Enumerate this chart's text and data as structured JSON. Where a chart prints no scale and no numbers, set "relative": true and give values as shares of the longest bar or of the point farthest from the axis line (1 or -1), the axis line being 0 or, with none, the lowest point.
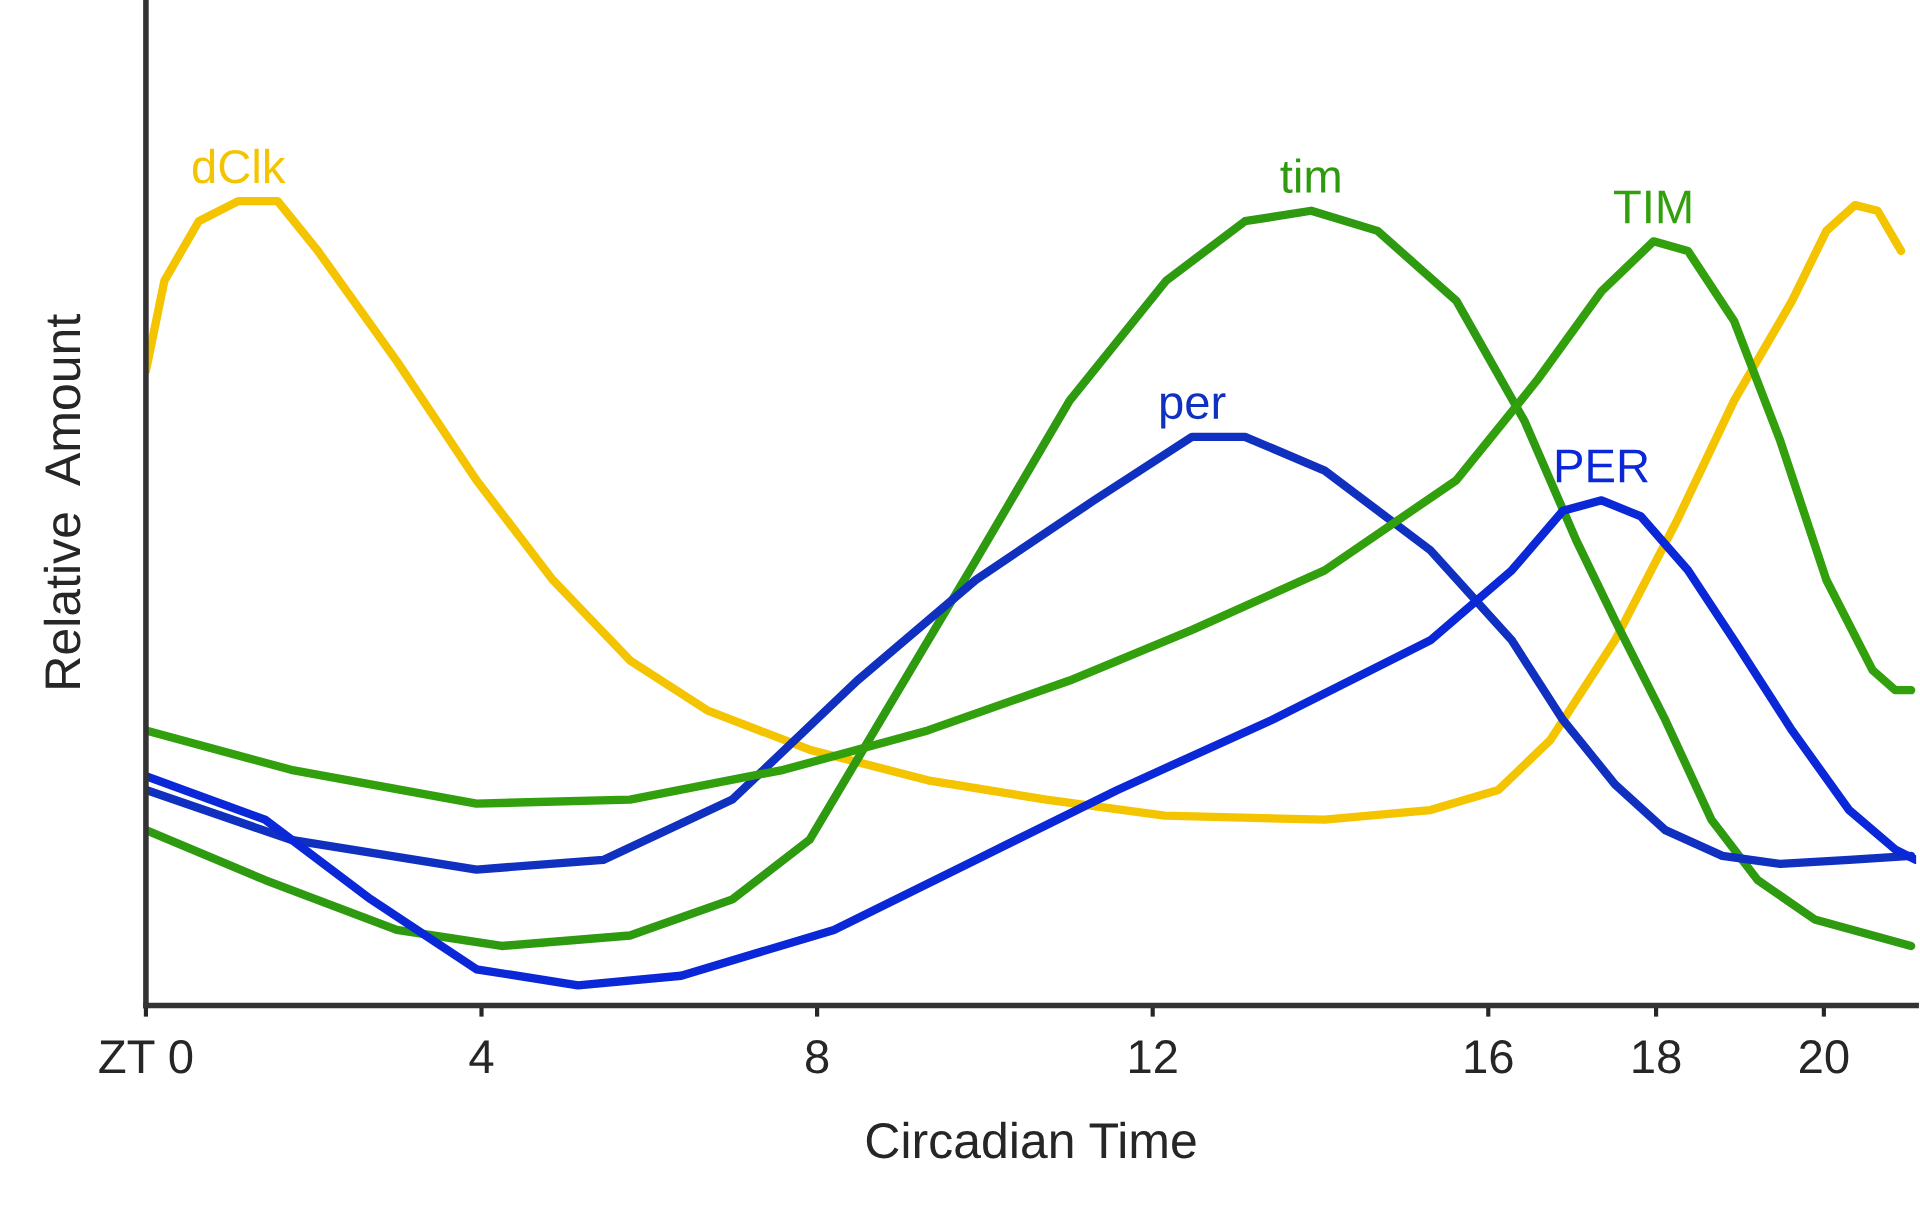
{
  "chart_data": {
    "type": "line",
    "relative": true,
    "xlabel": "Circadian Time",
    "ylabel": "Relative  Amount",
    "xlim": [
      0,
      21.1
    ],
    "xticks": [
      {
        "value": 0,
        "label": "ZT 0"
      },
      4,
      8,
      12,
      16,
      18,
      20
    ],
    "grid": false,
    "legend": false,
    "marker": "none",
    "line_style": "solid",
    "series": [
      {
        "name": "dClk",
        "color": "#f5c400",
        "x": [
          0,
          0.22,
          0.63,
          1.1,
          1.57,
          2.05,
          2.99,
          3.94,
          4.85,
          5.77,
          6.69,
          7.91,
          9.32,
          10.73,
          12.14,
          14.05,
          15.31,
          16.12,
          16.74,
          17.51,
          18.25,
          18.93,
          19.62,
          20.03,
          20.37,
          20.64,
          20.92
        ],
        "values": [
          0.789,
          0.901,
          0.975,
          1.0,
          1.0,
          0.938,
          0.801,
          0.653,
          0.529,
          0.429,
          0.367,
          0.318,
          0.28,
          0.256,
          0.236,
          0.231,
          0.243,
          0.268,
          0.33,
          0.454,
          0.603,
          0.752,
          0.876,
          0.963,
          0.995,
          0.988,
          0.938
        ]
      },
      {
        "name": "tim",
        "color": "#2e9a10",
        "x": [
          0,
          1.42,
          2.99,
          4.24,
          5.77,
          6.99,
          7.91,
          8.76,
          9.89,
          11.01,
          12.16,
          13.1,
          13.89,
          14.68,
          15.62,
          16.43,
          17.05,
          17.51,
          18.11,
          18.66,
          19.21,
          19.89,
          21.04
        ],
        "values": [
          0.218,
          0.156,
          0.094,
          0.074,
          0.087,
          0.132,
          0.206,
          0.355,
          0.553,
          0.752,
          0.901,
          0.975,
          0.988,
          0.963,
          0.876,
          0.727,
          0.578,
          0.479,
          0.355,
          0.231,
          0.156,
          0.107,
          0.074
        ]
      },
      {
        "name": "per",
        "color": "#1030c0",
        "x": [
          0,
          1.73,
          3.94,
          5.45,
          6.99,
          8.48,
          9.89,
          11.3,
          12.47,
          13.1,
          14.05,
          15.31,
          16.28,
          16.89,
          17.51,
          18.11,
          18.79,
          19.48,
          20.3,
          21.04
        ],
        "values": [
          0.268,
          0.206,
          0.169,
          0.181,
          0.256,
          0.404,
          0.529,
          0.628,
          0.707,
          0.707,
          0.665,
          0.566,
          0.454,
          0.355,
          0.275,
          0.218,
          0.186,
          0.176,
          0.181,
          0.186
        ]
      },
      {
        "name": "TIM",
        "color": "#32a00c",
        "x": [
          0,
          1.73,
          3.94,
          5.77,
          7.6,
          9.32,
          11.01,
          12.47,
          14.05,
          15.62,
          16.58,
          17.35,
          17.97,
          18.38,
          18.93,
          19.48,
          20.03,
          20.58,
          20.85,
          21.04
        ],
        "values": [
          0.342,
          0.293,
          0.251,
          0.256,
          0.293,
          0.342,
          0.404,
          0.467,
          0.541,
          0.653,
          0.777,
          0.888,
          0.95,
          0.938,
          0.851,
          0.702,
          0.529,
          0.417,
          0.392,
          0.392
        ]
      },
      {
        "name": "PER",
        "color": "#0a28d8",
        "x": [
          0,
          1.42,
          2.68,
          3.94,
          5.15,
          6.38,
          8.2,
          9.89,
          11.58,
          13.42,
          15.31,
          16.28,
          16.89,
          17.35,
          17.82,
          18.38,
          18.93,
          19.62,
          20.3,
          20.85,
          21.1
        ],
        "values": [
          0.285,
          0.231,
          0.132,
          0.045,
          0.025,
          0.037,
          0.094,
          0.181,
          0.268,
          0.355,
          0.454,
          0.541,
          0.615,
          0.628,
          0.608,
          0.541,
          0.454,
          0.342,
          0.243,
          0.194,
          0.181
        ]
      }
    ]
  }
}
